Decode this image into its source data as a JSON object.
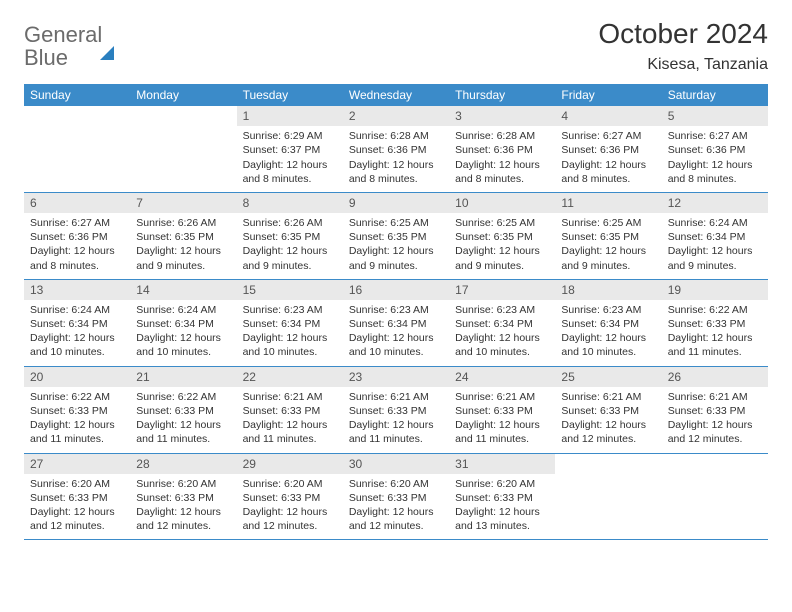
{
  "logo": {
    "word1": "General",
    "word2": "Blue"
  },
  "title": "October 2024",
  "location": "Kisesa, Tanzania",
  "colors": {
    "header_bg": "#3b8bc9",
    "header_text": "#ffffff",
    "daynum_bg": "#e9e9e9",
    "week_border": "#3b8bc9",
    "logo_gray": "#6b6b6b",
    "logo_blue": "#2a7fbf"
  },
  "day_names": [
    "Sunday",
    "Monday",
    "Tuesday",
    "Wednesday",
    "Thursday",
    "Friday",
    "Saturday"
  ],
  "weeks": [
    [
      {
        "n": "",
        "sr": "",
        "ss": "",
        "dl": ""
      },
      {
        "n": "",
        "sr": "",
        "ss": "",
        "dl": ""
      },
      {
        "n": "1",
        "sr": "Sunrise: 6:29 AM",
        "ss": "Sunset: 6:37 PM",
        "dl": "Daylight: 12 hours and 8 minutes."
      },
      {
        "n": "2",
        "sr": "Sunrise: 6:28 AM",
        "ss": "Sunset: 6:36 PM",
        "dl": "Daylight: 12 hours and 8 minutes."
      },
      {
        "n": "3",
        "sr": "Sunrise: 6:28 AM",
        "ss": "Sunset: 6:36 PM",
        "dl": "Daylight: 12 hours and 8 minutes."
      },
      {
        "n": "4",
        "sr": "Sunrise: 6:27 AM",
        "ss": "Sunset: 6:36 PM",
        "dl": "Daylight: 12 hours and 8 minutes."
      },
      {
        "n": "5",
        "sr": "Sunrise: 6:27 AM",
        "ss": "Sunset: 6:36 PM",
        "dl": "Daylight: 12 hours and 8 minutes."
      }
    ],
    [
      {
        "n": "6",
        "sr": "Sunrise: 6:27 AM",
        "ss": "Sunset: 6:36 PM",
        "dl": "Daylight: 12 hours and 8 minutes."
      },
      {
        "n": "7",
        "sr": "Sunrise: 6:26 AM",
        "ss": "Sunset: 6:35 PM",
        "dl": "Daylight: 12 hours and 9 minutes."
      },
      {
        "n": "8",
        "sr": "Sunrise: 6:26 AM",
        "ss": "Sunset: 6:35 PM",
        "dl": "Daylight: 12 hours and 9 minutes."
      },
      {
        "n": "9",
        "sr": "Sunrise: 6:25 AM",
        "ss": "Sunset: 6:35 PM",
        "dl": "Daylight: 12 hours and 9 minutes."
      },
      {
        "n": "10",
        "sr": "Sunrise: 6:25 AM",
        "ss": "Sunset: 6:35 PM",
        "dl": "Daylight: 12 hours and 9 minutes."
      },
      {
        "n": "11",
        "sr": "Sunrise: 6:25 AM",
        "ss": "Sunset: 6:35 PM",
        "dl": "Daylight: 12 hours and 9 minutes."
      },
      {
        "n": "12",
        "sr": "Sunrise: 6:24 AM",
        "ss": "Sunset: 6:34 PM",
        "dl": "Daylight: 12 hours and 9 minutes."
      }
    ],
    [
      {
        "n": "13",
        "sr": "Sunrise: 6:24 AM",
        "ss": "Sunset: 6:34 PM",
        "dl": "Daylight: 12 hours and 10 minutes."
      },
      {
        "n": "14",
        "sr": "Sunrise: 6:24 AM",
        "ss": "Sunset: 6:34 PM",
        "dl": "Daylight: 12 hours and 10 minutes."
      },
      {
        "n": "15",
        "sr": "Sunrise: 6:23 AM",
        "ss": "Sunset: 6:34 PM",
        "dl": "Daylight: 12 hours and 10 minutes."
      },
      {
        "n": "16",
        "sr": "Sunrise: 6:23 AM",
        "ss": "Sunset: 6:34 PM",
        "dl": "Daylight: 12 hours and 10 minutes."
      },
      {
        "n": "17",
        "sr": "Sunrise: 6:23 AM",
        "ss": "Sunset: 6:34 PM",
        "dl": "Daylight: 12 hours and 10 minutes."
      },
      {
        "n": "18",
        "sr": "Sunrise: 6:23 AM",
        "ss": "Sunset: 6:34 PM",
        "dl": "Daylight: 12 hours and 10 minutes."
      },
      {
        "n": "19",
        "sr": "Sunrise: 6:22 AM",
        "ss": "Sunset: 6:33 PM",
        "dl": "Daylight: 12 hours and 11 minutes."
      }
    ],
    [
      {
        "n": "20",
        "sr": "Sunrise: 6:22 AM",
        "ss": "Sunset: 6:33 PM",
        "dl": "Daylight: 12 hours and 11 minutes."
      },
      {
        "n": "21",
        "sr": "Sunrise: 6:22 AM",
        "ss": "Sunset: 6:33 PM",
        "dl": "Daylight: 12 hours and 11 minutes."
      },
      {
        "n": "22",
        "sr": "Sunrise: 6:21 AM",
        "ss": "Sunset: 6:33 PM",
        "dl": "Daylight: 12 hours and 11 minutes."
      },
      {
        "n": "23",
        "sr": "Sunrise: 6:21 AM",
        "ss": "Sunset: 6:33 PM",
        "dl": "Daylight: 12 hours and 11 minutes."
      },
      {
        "n": "24",
        "sr": "Sunrise: 6:21 AM",
        "ss": "Sunset: 6:33 PM",
        "dl": "Daylight: 12 hours and 11 minutes."
      },
      {
        "n": "25",
        "sr": "Sunrise: 6:21 AM",
        "ss": "Sunset: 6:33 PM",
        "dl": "Daylight: 12 hours and 12 minutes."
      },
      {
        "n": "26",
        "sr": "Sunrise: 6:21 AM",
        "ss": "Sunset: 6:33 PM",
        "dl": "Daylight: 12 hours and 12 minutes."
      }
    ],
    [
      {
        "n": "27",
        "sr": "Sunrise: 6:20 AM",
        "ss": "Sunset: 6:33 PM",
        "dl": "Daylight: 12 hours and 12 minutes."
      },
      {
        "n": "28",
        "sr": "Sunrise: 6:20 AM",
        "ss": "Sunset: 6:33 PM",
        "dl": "Daylight: 12 hours and 12 minutes."
      },
      {
        "n": "29",
        "sr": "Sunrise: 6:20 AM",
        "ss": "Sunset: 6:33 PM",
        "dl": "Daylight: 12 hours and 12 minutes."
      },
      {
        "n": "30",
        "sr": "Sunrise: 6:20 AM",
        "ss": "Sunset: 6:33 PM",
        "dl": "Daylight: 12 hours and 12 minutes."
      },
      {
        "n": "31",
        "sr": "Sunrise: 6:20 AM",
        "ss": "Sunset: 6:33 PM",
        "dl": "Daylight: 12 hours and 13 minutes."
      },
      {
        "n": "",
        "sr": "",
        "ss": "",
        "dl": ""
      },
      {
        "n": "",
        "sr": "",
        "ss": "",
        "dl": ""
      }
    ]
  ]
}
